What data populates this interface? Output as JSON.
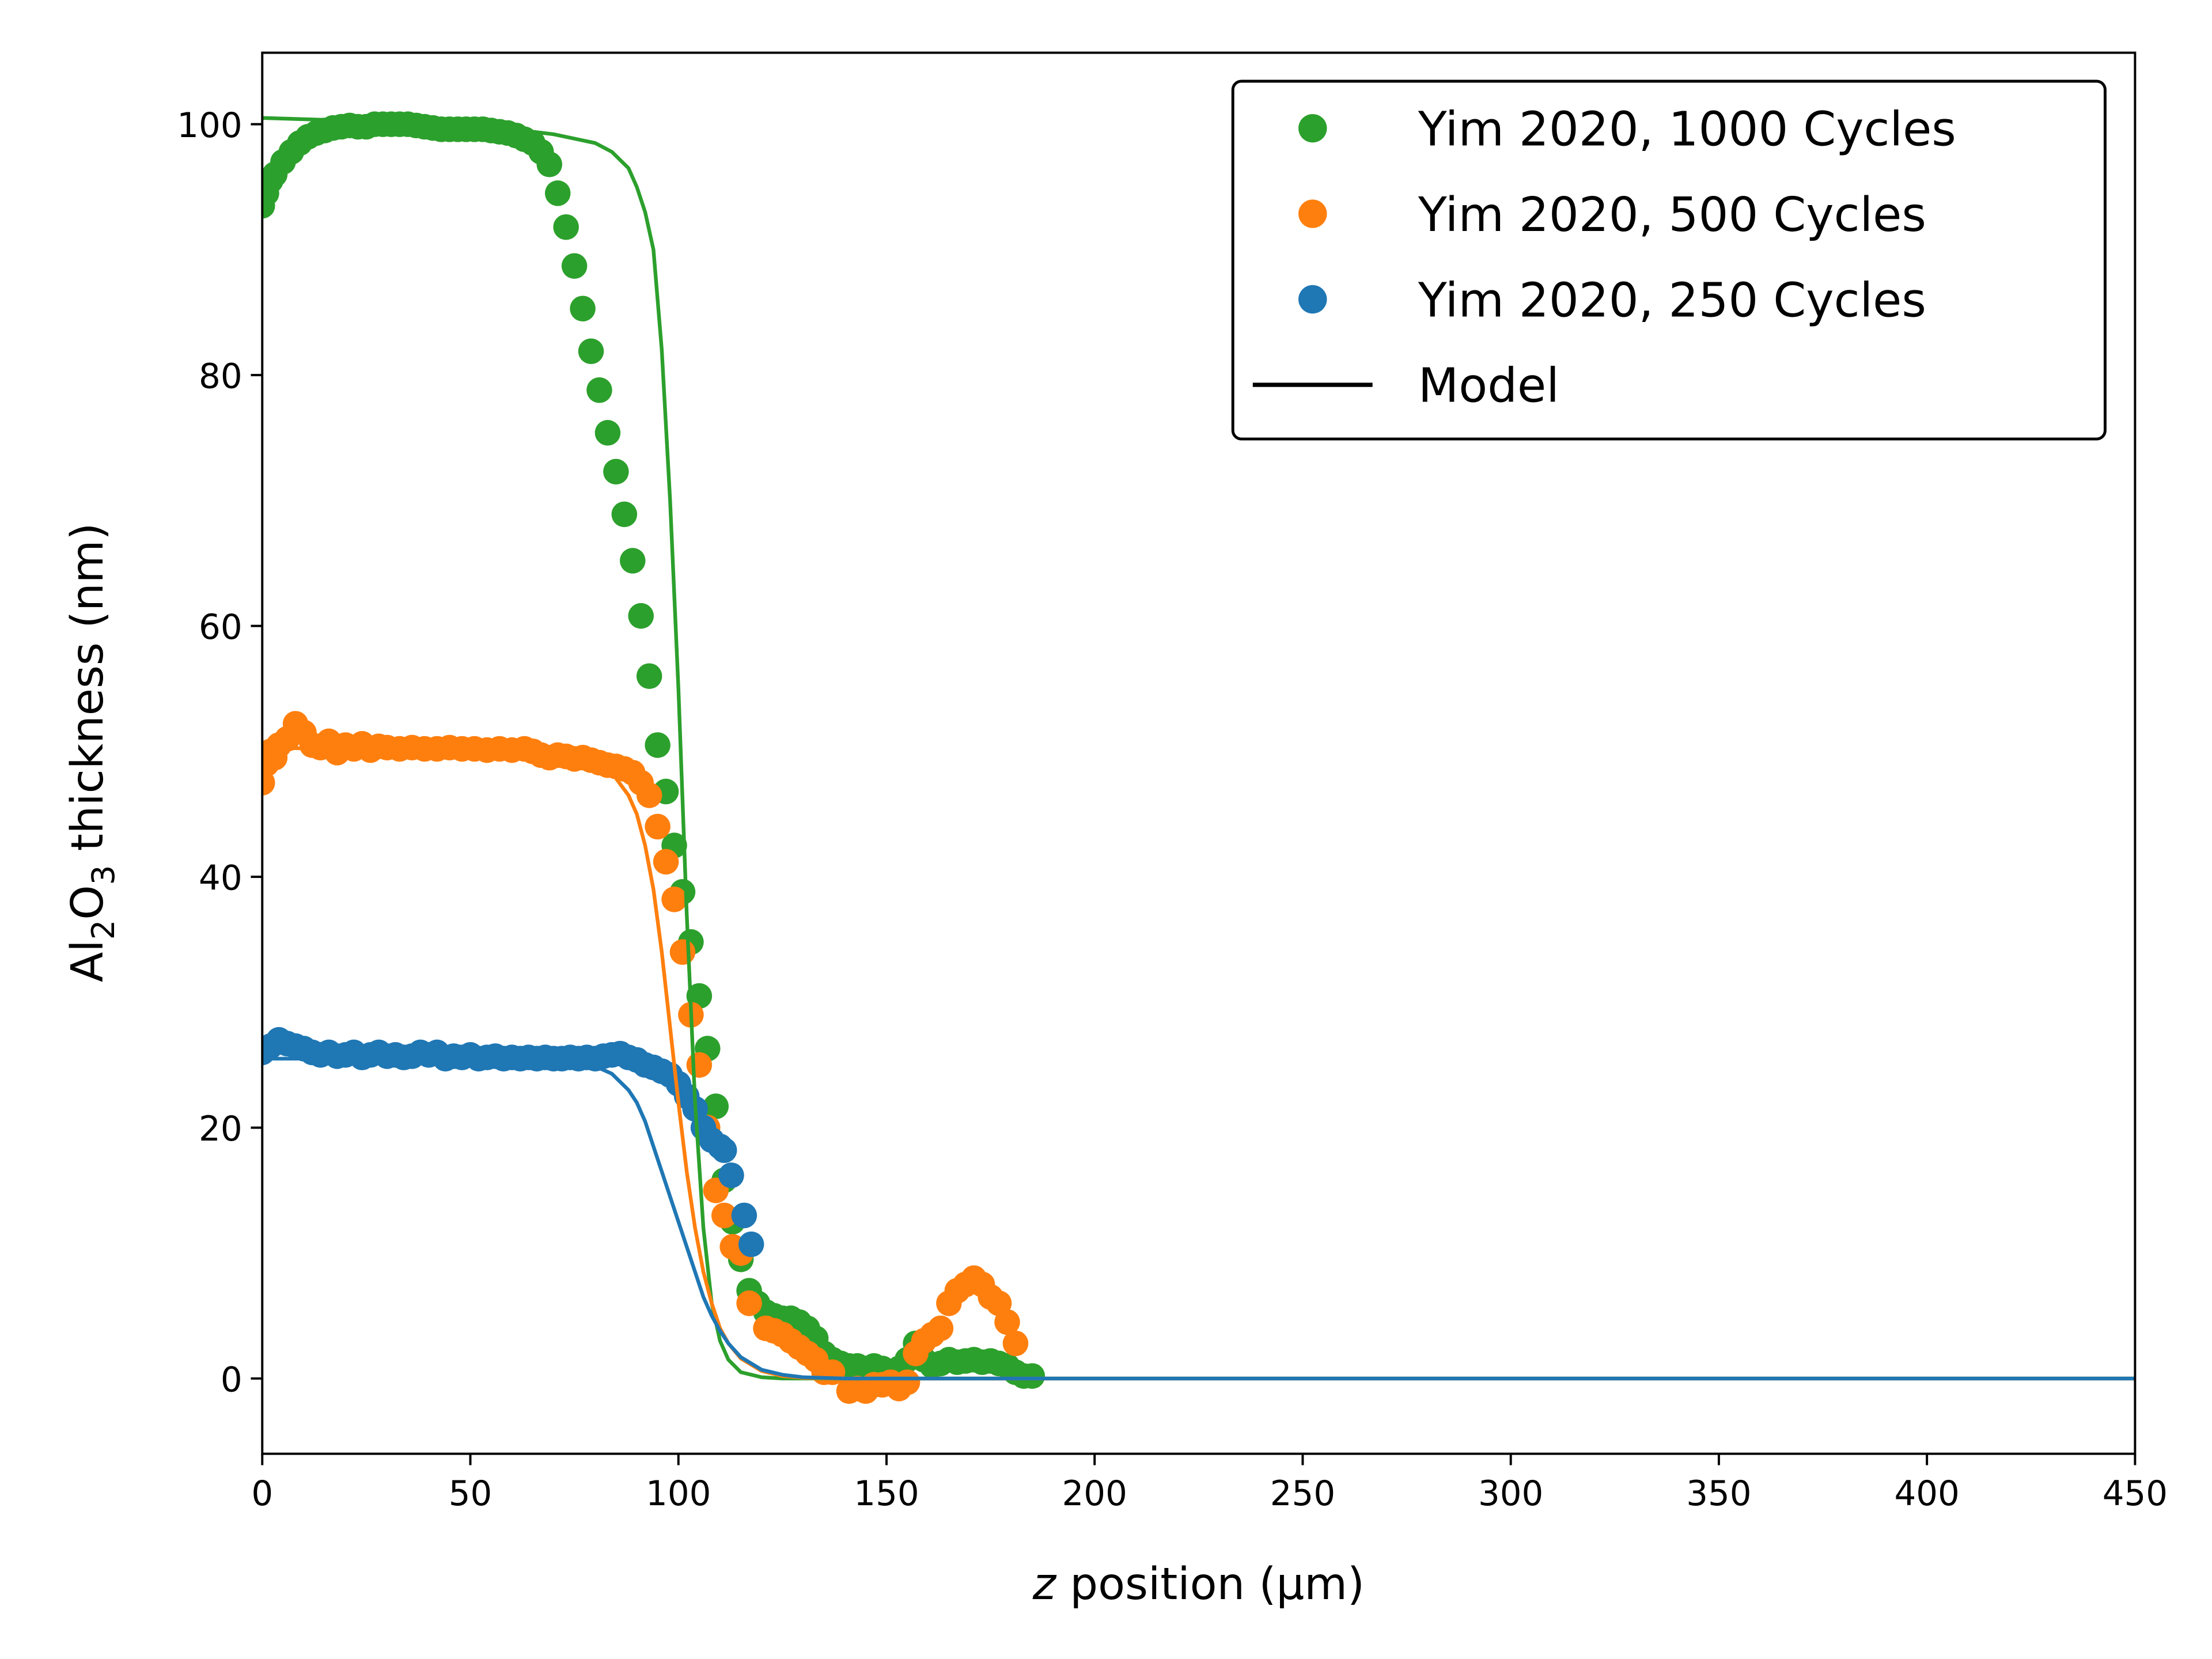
{
  "chart_data": {
    "type": "scatter",
    "title": "",
    "xlabel_parts": [
      "z",
      " position (μm)"
    ],
    "ylabel_parts": [
      "Al",
      "2",
      "O",
      "3",
      " thickness (nm)"
    ],
    "xlim": [
      0,
      450
    ],
    "ylim": [
      -6,
      105.7
    ],
    "xticks": [
      0,
      50,
      100,
      150,
      200,
      250,
      300,
      350,
      400,
      450
    ],
    "yticks": [
      0,
      20,
      40,
      60,
      80,
      100
    ],
    "grid": false,
    "legend_position": "top-right",
    "legend": [
      {
        "label": "Yim 2020, 1000 Cycles",
        "kind": "marker",
        "color": "#2ca02c"
      },
      {
        "label": "Yim 2020, 500 Cycles",
        "kind": "marker",
        "color": "#ff7f0e"
      },
      {
        "label": "Yim 2020, 250 Cycles",
        "kind": "marker",
        "color": "#1f77b4"
      },
      {
        "label": "Model",
        "kind": "line",
        "color": "#000000"
      }
    ],
    "series": [
      {
        "name": "Yim 2020, 1000 Cycles",
        "type": "scatter",
        "color": "#2ca02c",
        "x": [
          0,
          1,
          2,
          3,
          5,
          7,
          9,
          11,
          13,
          15,
          17,
          19,
          21,
          23,
          25,
          27,
          29,
          31,
          33,
          35,
          37,
          39,
          41,
          43,
          45,
          47,
          49,
          51,
          53,
          55,
          57,
          59,
          61,
          63,
          65,
          67,
          69,
          71,
          73,
          75,
          77,
          79,
          81,
          83,
          85,
          87,
          89,
          91,
          93,
          95,
          97,
          99,
          101,
          103,
          105,
          107,
          109,
          111,
          113,
          115,
          117,
          119,
          121,
          123,
          125,
          127,
          129,
          131,
          133,
          135,
          137,
          139,
          141,
          143,
          145,
          147,
          149,
          151,
          153,
          155,
          157,
          159,
          161,
          163,
          165,
          167,
          169,
          171,
          173,
          175,
          177,
          179,
          181,
          183,
          185
        ],
        "y": [
          93.5,
          94.5,
          95.5,
          96,
          97,
          97.8,
          98.5,
          99,
          99.3,
          99.5,
          99.7,
          99.8,
          99.9,
          99.8,
          99.8,
          100,
          100,
          100,
          100,
          100,
          99.9,
          99.8,
          99.7,
          99.6,
          99.6,
          99.6,
          99.6,
          99.6,
          99.6,
          99.5,
          99.4,
          99.3,
          99.1,
          98.8,
          98.5,
          97.8,
          96.8,
          94.5,
          91.8,
          88.7,
          85.3,
          81.9,
          78.8,
          75.4,
          72.3,
          68.9,
          65.2,
          60.8,
          56,
          50.5,
          46.8,
          42.5,
          38.8,
          34.8,
          30.5,
          26.3,
          21.7,
          15.8,
          12.5,
          9.5,
          7,
          6,
          5.3,
          5,
          4.8,
          4.8,
          4.5,
          4,
          3.2,
          2,
          1.5,
          1.2,
          1,
          1,
          0.8,
          1,
          0.8,
          0.5,
          0.8,
          1.5,
          2.8,
          1.5,
          1,
          1.2,
          1.5,
          1.3,
          1.4,
          1.5,
          1.3,
          1.4,
          1.2,
          1,
          0.5,
          0.2,
          0.2
        ]
      },
      {
        "name": "Yim 2020, 500 Cycles",
        "type": "scatter",
        "color": "#ff7f0e",
        "x": [
          0,
          1,
          2,
          3,
          4,
          6,
          8,
          10,
          12,
          14,
          16,
          18,
          20,
          22,
          24,
          26,
          28,
          30,
          33,
          36,
          39,
          42,
          45,
          48,
          51,
          54,
          57,
          60,
          63,
          65,
          67,
          69,
          71,
          73,
          75,
          77,
          79,
          81,
          83,
          85,
          87,
          89,
          91,
          93,
          95,
          97,
          99,
          101,
          103,
          105,
          107,
          109,
          111,
          113,
          115,
          117,
          121,
          123,
          125,
          127,
          129,
          131,
          133,
          135,
          137,
          141,
          143,
          145,
          147,
          149,
          151,
          153,
          155,
          157,
          159,
          161,
          163,
          165,
          167,
          169,
          171,
          173,
          175,
          177,
          179,
          181
        ],
        "y": [
          47.5,
          49,
          50,
          49.5,
          50.5,
          51,
          52.2,
          51.5,
          50.5,
          50.3,
          50.8,
          49.9,
          50.5,
          50.2,
          50.6,
          50.1,
          50.4,
          50.3,
          50.2,
          50.3,
          50.2,
          50.2,
          50.3,
          50.2,
          50.2,
          50.1,
          50.2,
          50.1,
          50.2,
          50,
          49.7,
          49.5,
          49.7,
          49.6,
          49.4,
          49.5,
          49.3,
          49.1,
          48.9,
          48.8,
          48.6,
          48.3,
          47.5,
          46.5,
          44,
          41.2,
          38.2,
          34,
          29,
          25,
          20,
          15,
          13,
          10.5,
          10,
          6,
          4,
          3.8,
          3.5,
          3,
          2.5,
          2,
          1.5,
          0.5,
          0.5,
          -1,
          -0.8,
          -1,
          -0.5,
          -0.5,
          -0.3,
          -0.8,
          -0.3,
          2,
          3,
          3.5,
          4,
          6,
          7,
          7.5,
          8,
          7.5,
          6.5,
          6,
          4.5,
          2.8
        ]
      },
      {
        "name": "Yim 2020, 250 Cycles",
        "type": "scatter",
        "color": "#1f77b4",
        "x": [
          0,
          2,
          4,
          6,
          8,
          10,
          12,
          14,
          16,
          18,
          20,
          22,
          24,
          26,
          28,
          30,
          32,
          34,
          36,
          38,
          40,
          42,
          44,
          46,
          48,
          50,
          52,
          54,
          56,
          58,
          60,
          62,
          64,
          66,
          68,
          70,
          72,
          74,
          76,
          78,
          80,
          82,
          84,
          86,
          88,
          90,
          92,
          94,
          96,
          98,
          100,
          102,
          104,
          106,
          108,
          110,
          111,
          112.7,
          115.8,
          117.5
        ],
        "y": [
          26,
          26.5,
          27,
          26.7,
          26.5,
          26.3,
          26,
          25.8,
          26,
          25.7,
          25.8,
          26,
          25.6,
          25.8,
          26,
          25.7,
          25.8,
          25.6,
          25.7,
          26,
          25.8,
          26,
          25.5,
          25.7,
          25.6,
          25.8,
          25.5,
          25.6,
          25.7,
          25.5,
          25.6,
          25.5,
          25.6,
          25.5,
          25.6,
          25.5,
          25.5,
          25.6,
          25.5,
          25.6,
          25.5,
          25.7,
          25.8,
          25.9,
          25.6,
          25.4,
          25,
          24.8,
          24.5,
          24.2,
          23.5,
          22.5,
          21.5,
          20,
          19,
          18.5,
          18.2,
          16.2,
          13,
          10.7
        ]
      },
      {
        "name": "Model (1000 Cycles)",
        "type": "line",
        "color": "#2ca02c",
        "x": [
          0,
          50,
          70,
          80,
          84,
          88,
          90,
          92,
          94,
          96,
          98,
          100,
          102,
          104,
          106,
          108,
          110,
          112,
          115,
          120,
          125,
          140,
          150,
          200,
          450
        ],
        "y": [
          100.5,
          100,
          99.2,
          98.5,
          97.8,
          96.5,
          95,
          93,
          90,
          82,
          70,
          55,
          37,
          22,
          12,
          6,
          3,
          1.5,
          0.5,
          0.1,
          0,
          0,
          0,
          0,
          0
        ]
      },
      {
        "name": "Model (500 Cycles)",
        "type": "line",
        "color": "#ff7f0e",
        "x": [
          0,
          50,
          70,
          80,
          84,
          88,
          90,
          92,
          94,
          96,
          98,
          100,
          102,
          104,
          106,
          108,
          110,
          112,
          115,
          120,
          125,
          130,
          140,
          150,
          200,
          450
        ],
        "y": [
          50.3,
          50,
          49.7,
          49,
          48.3,
          46.5,
          45,
          42.5,
          39,
          34,
          28,
          22,
          16.5,
          12,
          8.5,
          6,
          4,
          2.8,
          1.6,
          0.6,
          0.2,
          0.05,
          0,
          0,
          0,
          0
        ]
      },
      {
        "name": "Model (250 Cycles)",
        "type": "line",
        "color": "#1f77b4",
        "x": [
          0,
          50,
          70,
          80,
          84,
          88,
          90,
          92,
          94,
          96,
          98,
          100,
          102,
          104,
          106,
          108,
          110,
          112,
          115,
          120,
          125,
          130,
          140,
          150,
          200,
          450
        ],
        "y": [
          25.5,
          25.5,
          25.3,
          24.9,
          24.3,
          23,
          22,
          20.5,
          18.5,
          16.5,
          14.5,
          12.5,
          10.5,
          8.5,
          6.5,
          5,
          3.8,
          2.8,
          1.7,
          0.7,
          0.3,
          0.1,
          0,
          0,
          0,
          0
        ]
      }
    ]
  }
}
